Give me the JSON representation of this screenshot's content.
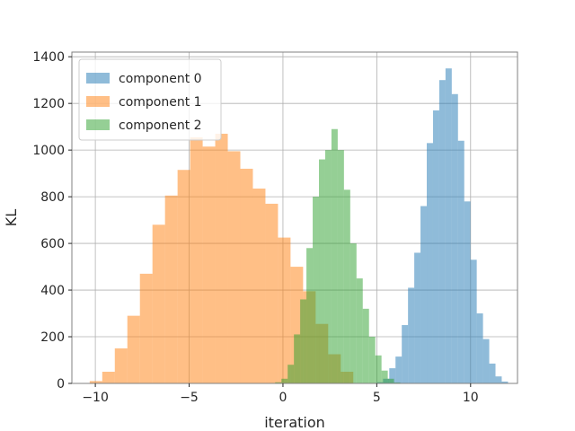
{
  "chart_data": {
    "type": "bar",
    "title": "",
    "xlabel": "iteration",
    "ylabel": "KL",
    "xlim": [
      -11.25,
      12.5
    ],
    "ylim": [
      0,
      1420
    ],
    "xticks": [
      -10,
      -5,
      0,
      5,
      10
    ],
    "xtick_labels": [
      "−10",
      "−5",
      "0",
      "5",
      "10"
    ],
    "yticks": [
      0,
      200,
      400,
      600,
      800,
      1000,
      1200,
      1400
    ],
    "ytick_labels": [
      "0",
      "200",
      "400",
      "600",
      "800",
      "1000",
      "1200",
      "1400"
    ],
    "grid": true,
    "legend_position": "top-left",
    "series": [
      {
        "name": "component 0",
        "color": "#1f77b4",
        "alpha": 0.5,
        "bin_start": 5.0,
        "bin_width": 0.333,
        "values": [
          5,
          20,
          65,
          115,
          250,
          410,
          560,
          760,
          1030,
          1170,
          1300,
          1350,
          1240,
          1040,
          780,
          530,
          300,
          190,
          85,
          30,
          8
        ]
      },
      {
        "name": "component 1",
        "color": "#ff7f0e",
        "alpha": 0.5,
        "bin_start": -10.3,
        "bin_width": 0.669,
        "values": [
          10,
          50,
          150,
          290,
          470,
          680,
          805,
          915,
          1055,
          1015,
          1070,
          995,
          920,
          835,
          770,
          625,
          500,
          395,
          255,
          125,
          50
        ]
      },
      {
        "name": "component 2",
        "color": "#2ca02c",
        "alpha": 0.5,
        "bin_start": -0.75,
        "bin_width": 0.3335,
        "values": [
          2,
          5,
          20,
          80,
          210,
          360,
          580,
          800,
          960,
          1000,
          1090,
          1000,
          830,
          600,
          450,
          320,
          200,
          120,
          55,
          20,
          4
        ]
      }
    ]
  }
}
